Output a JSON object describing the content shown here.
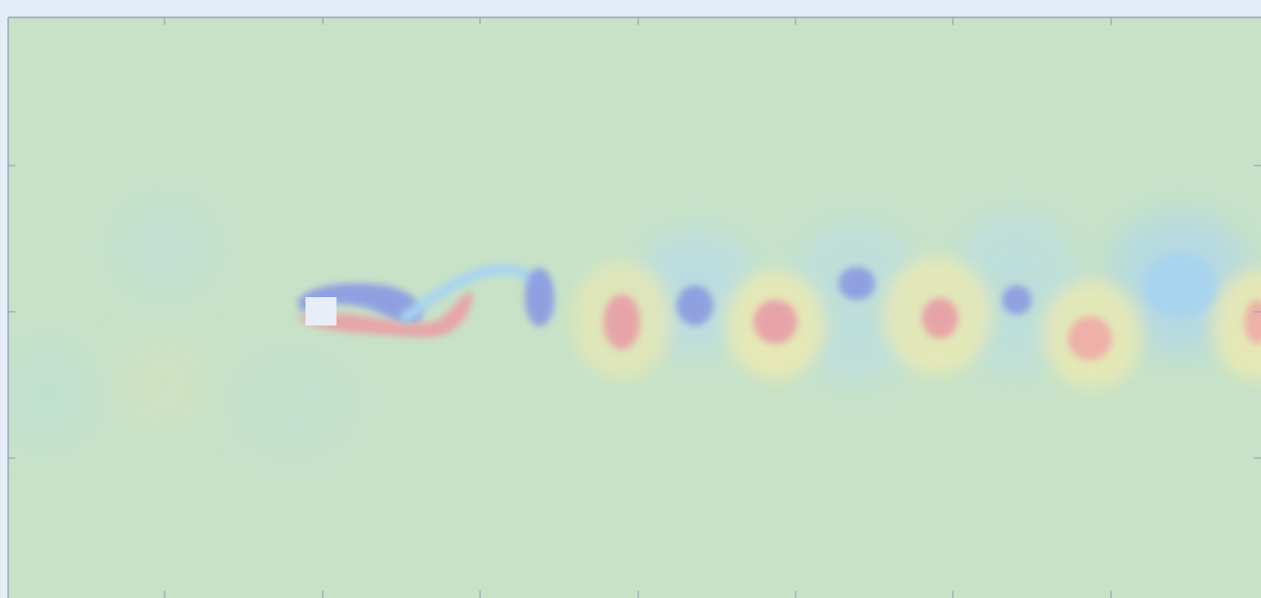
{
  "chart_data": {
    "type": "heatmap",
    "title": "",
    "xlabel": "",
    "ylabel": "",
    "description_free": true,
    "colormap": [
      "#8fa0e0",
      "#a8d4ee",
      "#c6e2c8",
      "#f2efb0",
      "#e7a4a8"
    ],
    "background_value_color": "#c7e2c7",
    "obstacle_color": "#e8eef8",
    "frame_color": "#9aa3b0",
    "x_ticks_count": 8,
    "y_ticks_count": 3,
    "vortices": [
      {
        "sign": -1,
        "strength": 1.0,
        "x": 9.0,
        "y": -0.55
      },
      {
        "sign": 1,
        "strength": 1.0,
        "x": 10.0,
        "y": 0.5
      },
      {
        "sign": -1,
        "strength": 1.0,
        "x": 12.1,
        "y": 0.3
      },
      {
        "sign": 1,
        "strength": 1.0,
        "x": 13.2,
        "y": 0.05
      },
      {
        "sign": -1,
        "strength": 1.0,
        "x": 14.3,
        "y": -0.35
      },
      {
        "sign": 1,
        "strength": 0.9,
        "x": 15.3,
        "y": 0.15
      },
      {
        "sign": -1,
        "strength": 0.9,
        "x": 16.4,
        "y": -0.6
      },
      {
        "sign": 1,
        "strength": 0.85,
        "x": 17.4,
        "y": 0.05
      },
      {
        "sign": -1,
        "strength": 0.8,
        "x": 18.4,
        "y": -0.4
      },
      {
        "sign": 1,
        "strength": 0.75,
        "x": 19.5,
        "y": 0.3
      },
      {
        "sign": -1,
        "strength": 0.6,
        "x": 20.5,
        "y": -0.7
      },
      {
        "sign": 1,
        "strength": 0.6,
        "x": 21.4,
        "y": 0.05
      }
    ]
  }
}
